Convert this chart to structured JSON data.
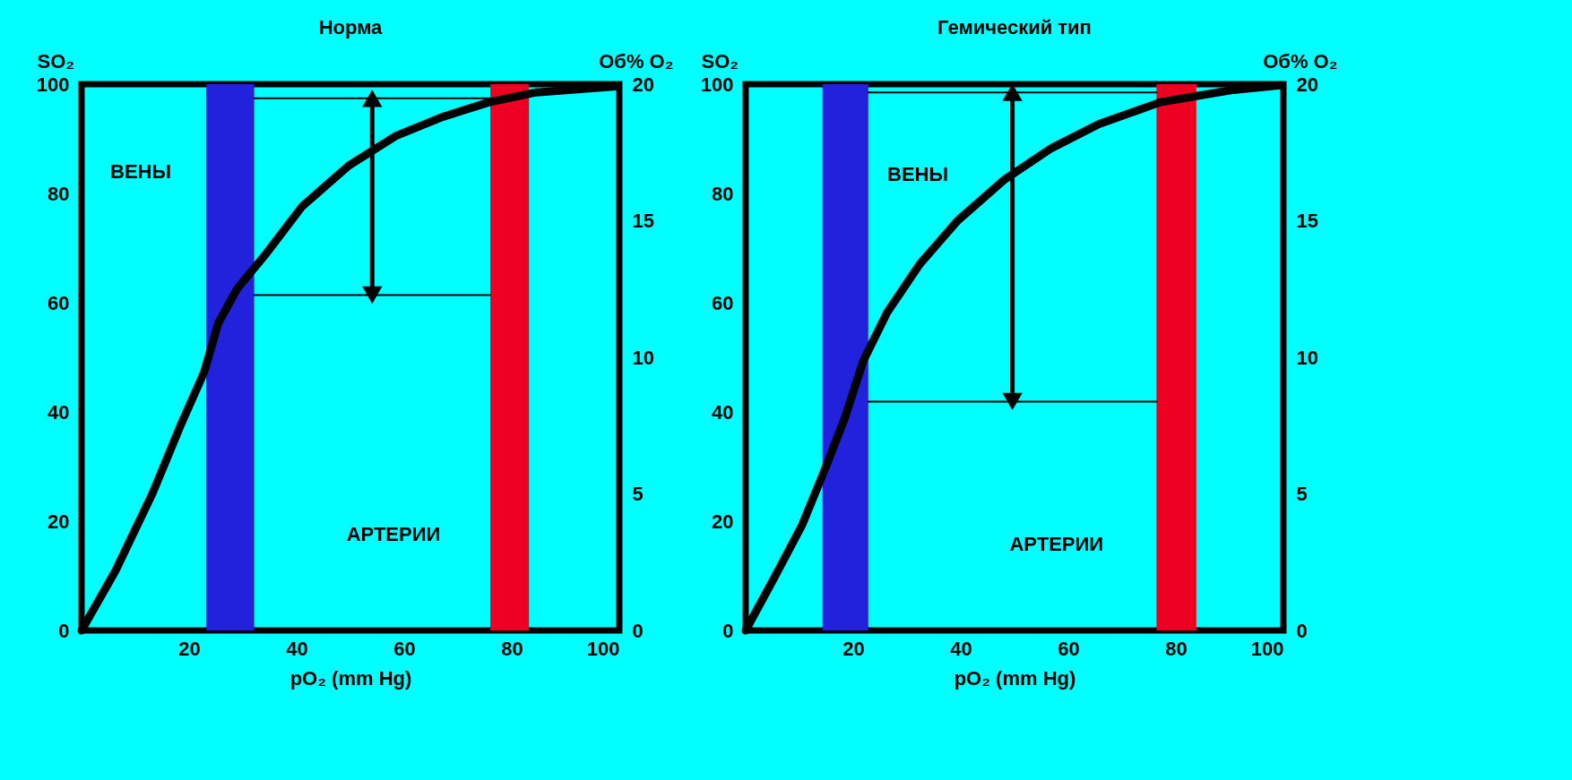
{
  "chart_data": [
    {
      "type": "line",
      "title": "Норма",
      "xlabel": "pO₂ (mm Hg)",
      "ylabel": "SO₂",
      "y2label": "Об% O₂",
      "xlim": [
        0,
        100
      ],
      "xticks": [
        20,
        40,
        60,
        80,
        100
      ],
      "ylim": [
        0,
        100
      ],
      "yticks": [
        0,
        20,
        40,
        60,
        80,
        100
      ],
      "y2lim": [
        0,
        20
      ],
      "y2ticks": [
        0,
        5,
        10,
        15,
        20
      ],
      "bands": [
        {
          "axis": "x",
          "from": 23.2,
          "to": 32.1,
          "color": "#2222dd"
        },
        {
          "axis": "x",
          "from": 76,
          "to": 83.2,
          "color": "#ee0022"
        }
      ],
      "annotations": [
        "ВЕНЫ",
        "АРТЕРИИ"
      ],
      "series": [
        {
          "color": "#000000",
          "x": [
            0,
            6.3,
            13.2,
            18.4,
            22.8,
            25.4,
            28.9,
            34.1,
            41,
            49.7,
            58.4,
            67.1,
            75.8,
            84.5,
            99.3
          ],
          "values": [
            0,
            10.9,
            25.1,
            37.5,
            47.3,
            56.2,
            62.5,
            68.7,
            77.6,
            85.1,
            90.5,
            94,
            96.7,
            98.5,
            99.6
          ]
        },
        {
          "color": "#000000",
          "x": [
            32.1,
            76
          ],
          "values": [
            97.4,
            97.4
          ]
        },
        {
          "color": "#000000",
          "x": [
            32.1,
            76
          ],
          "values": [
            61.4,
            61.4
          ]
        }
      ]
    },
    {
      "type": "line",
      "title": "Гемический тип",
      "xlabel": "pO₂ (mm Hg)",
      "ylabel": "SO₂",
      "y2label": "Об% O₂",
      "xlim": [
        0,
        100
      ],
      "xticks": [
        20,
        40,
        60,
        80,
        100
      ],
      "ylim": [
        0,
        100
      ],
      "yticks": [
        0,
        20,
        40,
        60,
        80,
        100
      ],
      "y2lim": [
        0,
        20
      ],
      "y2ticks": [
        0,
        5,
        10,
        15,
        20
      ],
      "bands": [
        {
          "axis": "x",
          "from": 14.3,
          "to": 22.8,
          "color": "#2222dd"
        },
        {
          "axis": "x",
          "from": 76.4,
          "to": 83.8,
          "color": "#ee0022"
        }
      ],
      "annotations": [
        "ВЕНЫ",
        "АРТЕРИИ"
      ],
      "series": [
        {
          "color": "#000000",
          "x": [
            0,
            5.3,
            10.5,
            14.9,
            18.4,
            21.9,
            26.3,
            32.4,
            39.4,
            48.2,
            56.9,
            65.7,
            77.1,
            90.2,
            99.4
          ],
          "values": [
            0,
            9.6,
            19.3,
            29.9,
            38.8,
            49.4,
            58.2,
            67.1,
            75,
            82.6,
            88.3,
            92.7,
            96.7,
            98.9,
            99.8
          ]
        },
        {
          "color": "#000000",
          "x": [
            22.8,
            76.4
          ],
          "values": [
            98.5,
            98.5
          ]
        },
        {
          "color": "#000000",
          "x": [
            22.8,
            76.4
          ],
          "values": [
            41.9,
            41.9
          ]
        }
      ]
    }
  ]
}
